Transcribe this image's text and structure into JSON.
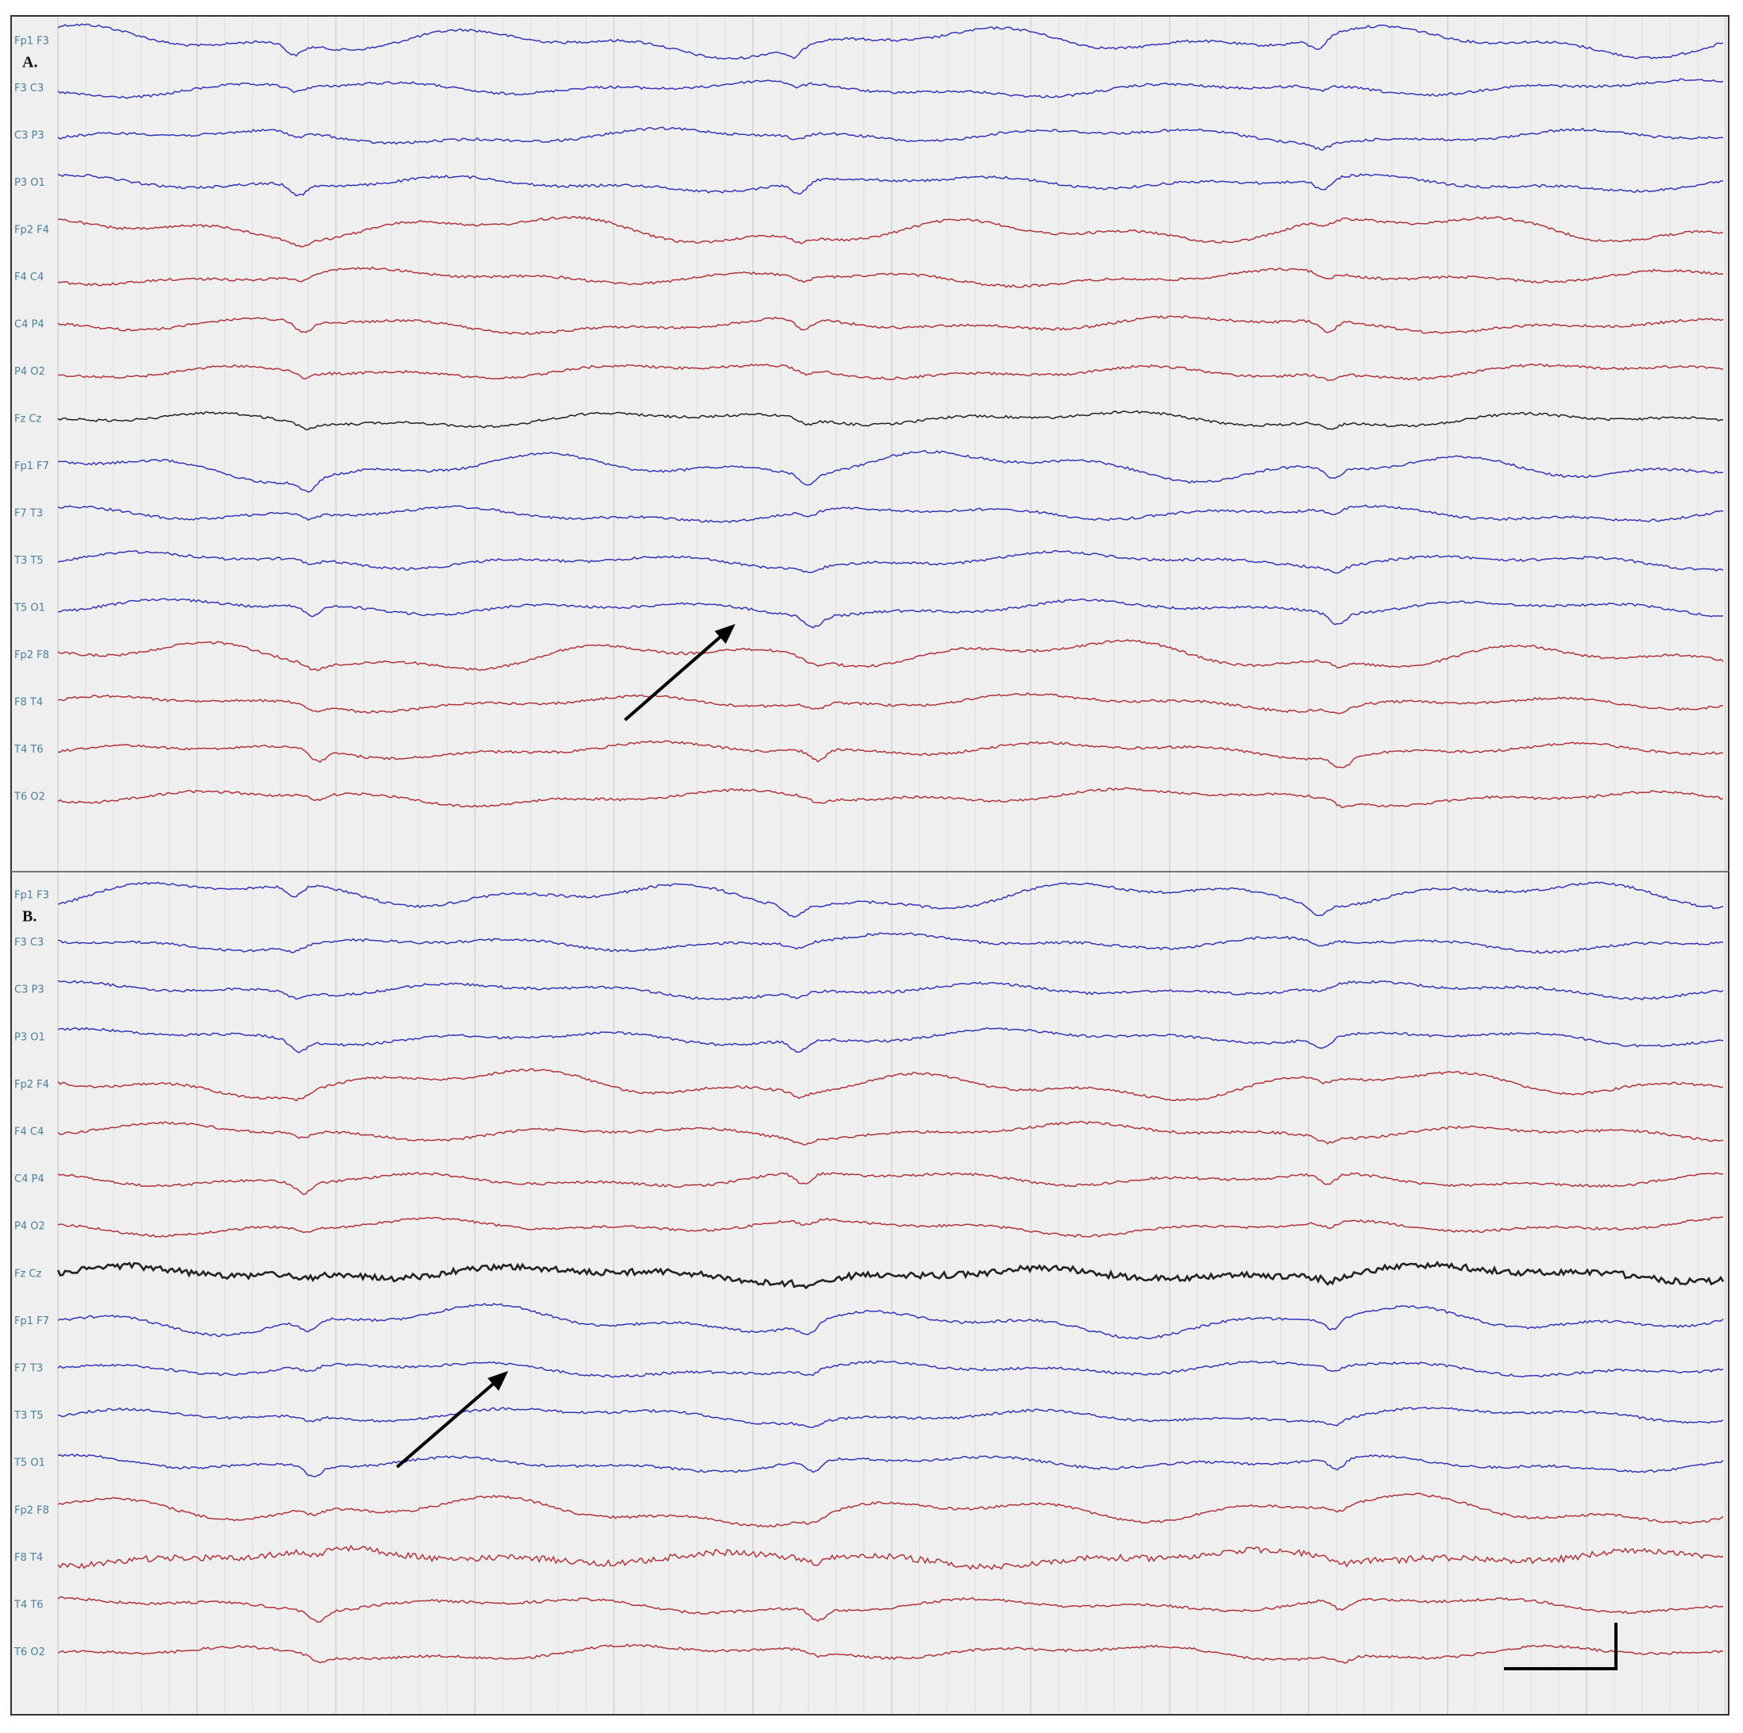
{
  "panels": [
    {
      "label": "A.",
      "channels": [
        "Fp1 F3",
        "F3 C3",
        "C3 P3",
        "P3 O1",
        "Fp2 F4",
        "F4 C4",
        "C4 P4",
        "P4 O2",
        "Fz Cz",
        "Fp1 F7",
        "F7 T3",
        "T3 T5",
        "T5 O1",
        "Fp2 F8",
        "F8 T4",
        "T4 T6",
        "T6 O2"
      ]
    },
    {
      "label": "B.",
      "channels": [
        "Fp1 F3",
        "F3 C3",
        "C3 P3",
        "P3 O1",
        "Fp2 F4",
        "F4 C4",
        "C4 P4",
        "P4 O2",
        "Fz Cz",
        "Fp1 F7",
        "F7 T3",
        "T3 T5",
        "T5 O1",
        "Fp2 F8",
        "F8 T4",
        "T4 T6",
        "T6 O2"
      ]
    }
  ]
}
